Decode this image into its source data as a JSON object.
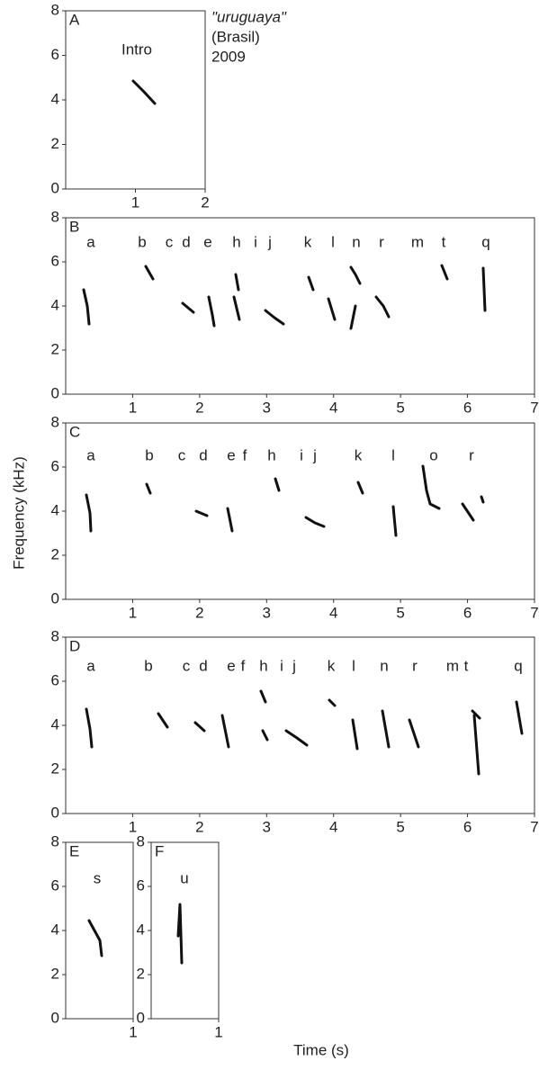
{
  "chart_data": [
    {
      "type": "spectrogram",
      "panel_label": "A",
      "xlim": [
        0,
        2
      ],
      "ylim": [
        0,
        8
      ],
      "xticks": [
        1,
        2
      ],
      "yticks": [
        0,
        2,
        4,
        6,
        8
      ],
      "syllables": [
        "Intro"
      ]
    },
    {
      "type": "spectrogram",
      "panel_label": "B",
      "xlim": [
        0,
        7
      ],
      "ylim": [
        0,
        8
      ],
      "xticks": [
        1,
        2,
        3,
        4,
        5,
        6,
        7
      ],
      "yticks": [
        0,
        2,
        4,
        6,
        8
      ],
      "syllables": [
        "a",
        "b",
        "c",
        "d",
        "e",
        "h",
        "i",
        "j",
        "k",
        "l",
        "n",
        "r",
        "m",
        "t",
        "q"
      ]
    },
    {
      "type": "spectrogram",
      "panel_label": "C",
      "xlim": [
        0,
        7
      ],
      "ylim": [
        0,
        8
      ],
      "xticks": [
        1,
        2,
        3,
        4,
        5,
        6,
        7
      ],
      "yticks": [
        0,
        2,
        4,
        6,
        8
      ],
      "syllables": [
        "a",
        "b",
        "c",
        "d",
        "e",
        "f",
        "h",
        "i",
        "j",
        "k",
        "l",
        "o",
        "r"
      ]
    },
    {
      "type": "spectrogram",
      "panel_label": "D",
      "xlim": [
        0,
        7
      ],
      "ylim": [
        0,
        8
      ],
      "xticks": [
        1,
        2,
        3,
        4,
        5,
        6,
        7
      ],
      "yticks": [
        0,
        2,
        4,
        6,
        8
      ],
      "syllables": [
        "a",
        "b",
        "c",
        "d",
        "e",
        "f",
        "h",
        "i",
        "j",
        "k",
        "l",
        "n",
        "r",
        "m",
        "t",
        "q"
      ]
    },
    {
      "type": "spectrogram",
      "panel_label": "E",
      "xlim": [
        0,
        1
      ],
      "ylim": [
        0,
        8
      ],
      "xticks": [
        1
      ],
      "yticks": [
        0,
        2,
        4,
        6,
        8
      ],
      "syllables": [
        "s"
      ]
    },
    {
      "type": "spectrogram",
      "panel_label": "F",
      "xlim": [
        0,
        1
      ],
      "ylim": [
        0,
        8
      ],
      "xticks": [
        1
      ],
      "yticks": [
        0,
        2,
        4,
        6,
        8
      ],
      "syllables": [
        "u"
      ]
    }
  ],
  "figure": {
    "annotation": [
      "\"uruguaya\"",
      "(Brasil)",
      "2009"
    ],
    "y_label": "Frequency (kHz)",
    "x_label": "Time (s)"
  }
}
